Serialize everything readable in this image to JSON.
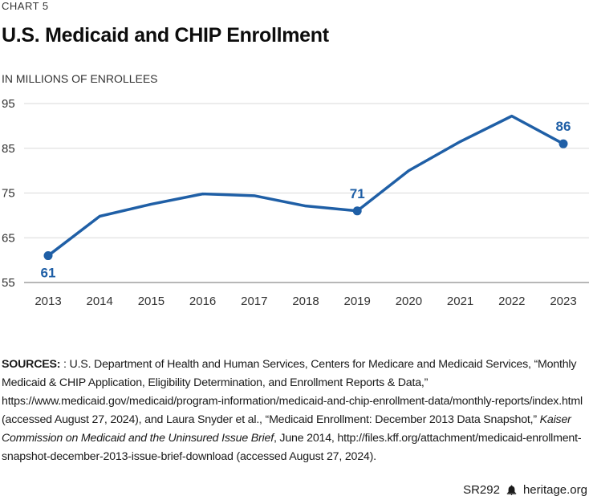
{
  "header": {
    "chart_number": "CHART 5",
    "title": "U.S. Medicaid and CHIP Enrollment",
    "y_unit_label": "IN MILLIONS OF ENROLLEES"
  },
  "chart_data": {
    "type": "line",
    "title": "U.S. Medicaid and CHIP Enrollment",
    "xlabel": "",
    "ylabel": "IN MILLIONS OF ENROLLEES",
    "x": [
      2013,
      2014,
      2015,
      2016,
      2017,
      2018,
      2019,
      2020,
      2021,
      2022,
      2023
    ],
    "categories": [
      "2013",
      "2014",
      "2015",
      "2016",
      "2017",
      "2018",
      "2019",
      "2020",
      "2021",
      "2022",
      "2023"
    ],
    "series": [
      {
        "name": "Medicaid and CHIP Enrollment",
        "values": [
          61,
          69.8,
          72.5,
          74.8,
          74.4,
          72.1,
          71,
          80,
          86.5,
          92.2,
          86
        ]
      }
    ],
    "ylim": [
      55,
      95
    ],
    "yticks": [
      95,
      85,
      75,
      65,
      55
    ],
    "grid": true,
    "highlighted_points": [
      {
        "x": 2013,
        "label": "61"
      },
      {
        "x": 2019,
        "label": "71"
      },
      {
        "x": 2023,
        "label": "86"
      }
    ]
  },
  "colors": {
    "line": "#1f5fa6",
    "grid": "#d9d9d9",
    "axis": "#8c8c8c"
  },
  "sources": {
    "label": "SOURCES:",
    "text_part1": " : U.S. Department of Health and Human Services, Centers for Medicare and Medicaid Services, “Monthly Medicaid & CHIP Application, Eligibility Determination, and Enrollment Reports & Data,” https://www.medicaid.gov/medicaid/program-information/medicaid-and-chip-enrollment-data/monthly-reports/index.html (accessed August 27, 2024), and Laura Snyder et al., “Medicaid Enrollment: December 2013 Data Snapshot,” ",
    "text_italic": "Kaiser Commission on Medicaid and the Uninsured Issue Brief",
    "text_part2": ", June 2014, http://files.kff.org/attachment/medicaid-enrollment-snapshot-december-2013-issue-brief-download (accessed August 27, 2024)."
  },
  "footer": {
    "report_id": "SR292",
    "icon": "liberty-bell-icon",
    "site": "heritage.org"
  }
}
